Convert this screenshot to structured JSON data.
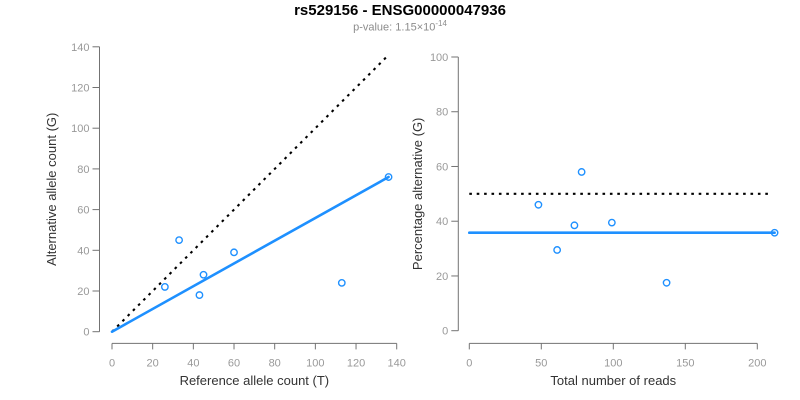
{
  "header": {
    "title": "rs529156 - ENSG00000047936",
    "pvalue_label": "p-value: ",
    "pvalue_base": "1.15×10",
    "pvalue_exponent": "-14"
  },
  "colors": {
    "accent_blue": "#1E90FF",
    "reference_black": "#000000"
  },
  "chart_data": [
    {
      "name": "allele-counts-scatter",
      "type": "scatter",
      "xlabel": "Reference allele count (T)",
      "ylabel": "Alternative allele count (G)",
      "xlim": [
        0,
        140
      ],
      "ylim": [
        0,
        140
      ],
      "xticks": [
        0,
        20,
        40,
        60,
        80,
        100,
        120,
        140
      ],
      "yticks": [
        0,
        20,
        40,
        60,
        80,
        100,
        120,
        140
      ],
      "grid": false,
      "points": {
        "x": [
          33,
          60,
          45,
          26,
          43,
          113,
          136
        ],
        "y": [
          45,
          39,
          28,
          22,
          18,
          24,
          76
        ]
      },
      "lines": [
        {
          "name": "identity-line",
          "style": "dotted",
          "color": "#000000",
          "from": [
            0,
            0
          ],
          "to": [
            136,
            136
          ]
        },
        {
          "name": "regression-line",
          "style": "solid",
          "color": "#1E90FF",
          "from": [
            0,
            0
          ],
          "to": [
            136,
            76
          ]
        }
      ]
    },
    {
      "name": "percentage-scatter",
      "type": "scatter",
      "xlabel": "Total number of reads",
      "ylabel": "Percentage alternative (G)",
      "xlim": [
        0,
        214
      ],
      "ylim": [
        0,
        100
      ],
      "xticks": [
        0,
        50,
        100,
        150,
        200
      ],
      "yticks": [
        0,
        20,
        40,
        60,
        80,
        100
      ],
      "grid": false,
      "points": {
        "x": [
          48,
          61,
          73,
          78,
          99,
          137,
          212
        ],
        "y": [
          46,
          29.5,
          38.5,
          58,
          39.5,
          17.5,
          35.8
        ]
      },
      "lines": [
        {
          "name": "fifty-percent-line",
          "style": "dotted",
          "color": "#000000",
          "from": [
            0,
            50
          ],
          "to": [
            208,
            50
          ]
        },
        {
          "name": "mean-percentage-line",
          "style": "solid",
          "color": "#1E90FF",
          "from": [
            0,
            35.8
          ],
          "to": [
            212,
            35.8
          ]
        }
      ]
    }
  ]
}
